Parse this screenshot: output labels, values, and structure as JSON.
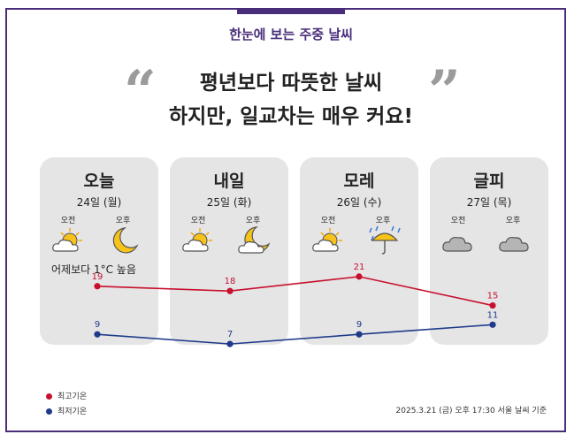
{
  "header": {
    "title": "한눈에 보는 주중 날씨"
  },
  "headline": {
    "line1": "평년보다 따뜻한 날씨",
    "line2": "하지만, 일교차는 매우 커요!",
    "open_quote": "“",
    "close_quote": "”"
  },
  "days": [
    {
      "name": "오늘",
      "date": "24일 (월)",
      "am_label": "오전",
      "pm_label": "오후",
      "am_icon": "partly-cloudy-sun-icon",
      "pm_icon": "moon-icon"
    },
    {
      "name": "내일",
      "date": "25일 (화)",
      "am_label": "오전",
      "pm_label": "오후",
      "am_icon": "partly-cloudy-sun-icon",
      "pm_icon": "cloudy-moon-icon"
    },
    {
      "name": "모레",
      "date": "26일 (수)",
      "am_label": "오전",
      "pm_label": "오후",
      "am_icon": "partly-cloudy-sun-icon",
      "pm_icon": "rain-umbrella-icon"
    },
    {
      "name": "글피",
      "date": "27일 (목)",
      "am_label": "오전",
      "pm_label": "오후",
      "am_icon": "cloudy-icon",
      "pm_icon": "cloudy-icon"
    }
  ],
  "note": "어제보다 1°C 높음",
  "legend": {
    "high": "최고기온",
    "low": "최저기온"
  },
  "source": "2025.3.21 (금) 오후 17:30 서울 날씨 기준",
  "colors": {
    "accent": "#4a2d7a",
    "high": "#c8102e",
    "low": "#1f3a8a",
    "card": "#e5e5e5"
  },
  "chart_data": {
    "type": "line",
    "categories": [
      "오늘",
      "내일",
      "모레",
      "글피"
    ],
    "series": [
      {
        "name": "최고기온",
        "values": [
          19,
          18,
          21,
          15
        ]
      },
      {
        "name": "최저기온",
        "values": [
          9,
          7,
          9,
          11
        ]
      }
    ],
    "ylim": [
      5,
      23
    ]
  }
}
